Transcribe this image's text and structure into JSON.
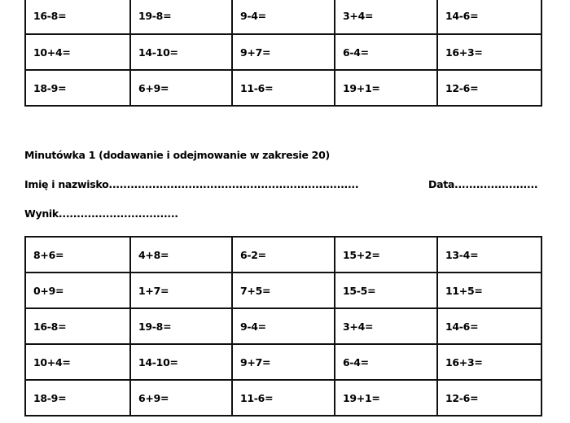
{
  "top_table": {
    "rows": [
      [
        "16-8=",
        "19-8=",
        "9-4=",
        "3+4=",
        "14-6="
      ],
      [
        "10+4=",
        "14-10=",
        "9+7=",
        "6-4=",
        "16+3="
      ],
      [
        "18-9=",
        "6+9=",
        "11-6=",
        "19+1=",
        "12-6="
      ]
    ]
  },
  "header": {
    "title": "Minutówka 1 (dodawanie i odejmowanie w zakresie 20)",
    "name_field": "Imię i nazwisko.....................................................................",
    "date_field": "Data.........................",
    "result_field": "Wynik................................."
  },
  "bottom_table": {
    "rows": [
      [
        "8+6=",
        "4+8=",
        "6-2=",
        "15+2=",
        "13-4="
      ],
      [
        "0+9=",
        "1+7=",
        "7+5=",
        "15-5=",
        "11+5="
      ],
      [
        "16-8=",
        "19-8=",
        "9-4=",
        "3+4=",
        "14-6="
      ],
      [
        "10+4=",
        "14-10=",
        "9+7=",
        "6-4=",
        "16+3="
      ],
      [
        "18-9=",
        "6+9=",
        "11-6=",
        "19+1=",
        "12-6="
      ]
    ]
  }
}
